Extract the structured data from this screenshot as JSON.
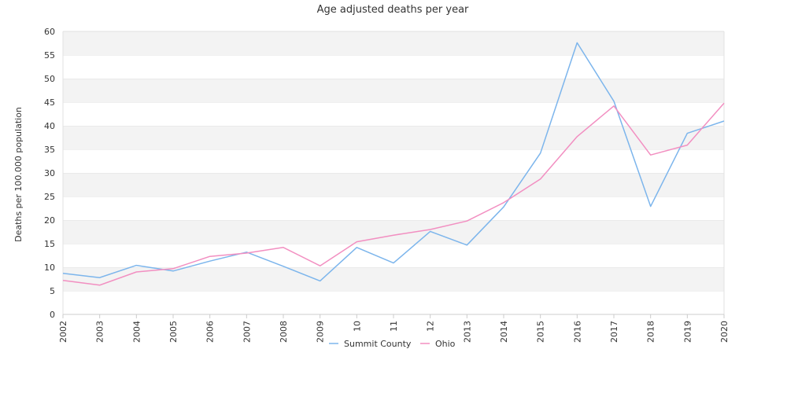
{
  "chart_data": {
    "type": "line",
    "title": "Age adjusted deaths per year",
    "ylabel": "Deaths per 100.000 population",
    "xlabel": "",
    "x": [
      "2002",
      "2003",
      "2004",
      "2005",
      "2006",
      "2007",
      "2008",
      "2009",
      "10",
      "11",
      "12",
      "2013",
      "2014",
      "2015",
      "2016",
      "2017",
      "2018",
      "2019",
      "2020"
    ],
    "ylim": [
      0,
      60
    ],
    "yticks": [
      0,
      5,
      10,
      15,
      20,
      25,
      30,
      35,
      40,
      45,
      50,
      55,
      60
    ],
    "grid": "alternating horizontal bands",
    "legend_position": "bottom-center",
    "series": [
      {
        "name": "Summit County",
        "color": "#7cb5ec",
        "values": [
          8.7,
          7.8,
          10.4,
          9.2,
          11.3,
          13.2,
          10.2,
          7.1,
          14.2,
          10.9,
          17.6,
          14.7,
          22.8,
          34.2,
          57.6,
          45.2,
          22.9,
          38.4,
          41.0
        ]
      },
      {
        "name": "Ohio",
        "color": "#f28fc1",
        "values": [
          7.2,
          6.2,
          9.0,
          9.7,
          12.3,
          13.0,
          14.2,
          10.3,
          15.4,
          16.8,
          18.0,
          19.8,
          23.7,
          28.7,
          37.7,
          44.2,
          33.8,
          35.9,
          44.8
        ]
      }
    ]
  }
}
